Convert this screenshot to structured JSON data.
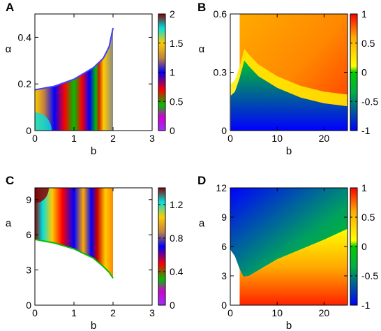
{
  "chart_data": [
    {
      "panel": "A",
      "type": "heatmap",
      "xlabel": "b",
      "ylabel": "α",
      "xlim": [
        0,
        3
      ],
      "ylim": [
        0,
        0.5
      ],
      "xticks": [
        "0",
        "1",
        "2",
        "3"
      ],
      "xtick_values": [
        0,
        1,
        2,
        3
      ],
      "yticks": [
        "0",
        "0.2",
        "0.4"
      ],
      "ytick_values": [
        0,
        0.2,
        0.4
      ],
      "colorbar": {
        "min": 0,
        "max": 2,
        "ticks": [
          "0",
          "0.5",
          "1",
          "1.5",
          "2"
        ],
        "tick_values": [
          0,
          0.5,
          1,
          1.5,
          2
        ],
        "palette": "cyclic-rainbow"
      },
      "region": {
        "b_max": 2.0,
        "upper_boundary": [
          [
            0,
            0.175
          ],
          [
            0.5,
            0.19
          ],
          [
            1.0,
            0.22
          ],
          [
            1.5,
            0.27
          ],
          [
            1.75,
            0.31
          ],
          [
            1.9,
            0.36
          ],
          [
            2.0,
            0.44
          ]
        ]
      }
    },
    {
      "panel": "B",
      "type": "heatmap",
      "xlabel": "b",
      "ylabel": "α",
      "xlim": [
        0,
        25
      ],
      "ylim": [
        0,
        0.6
      ],
      "xticks": [
        "0",
        "10",
        "20"
      ],
      "xtick_values": [
        0,
        10,
        20
      ],
      "yticks": [
        "0",
        "0.3",
        "0.6"
      ],
      "ytick_values": [
        0,
        0.3,
        0.6
      ],
      "colorbar": {
        "min": -1,
        "max": 1,
        "ticks": [
          "-1",
          "-0.5",
          "0",
          "0.5",
          "1"
        ],
        "tick_values": [
          -1,
          -0.5,
          0,
          0.5,
          1
        ],
        "palette": "blue-green-yellow-red"
      },
      "region": {
        "b_min": 2.0,
        "transition_curve": [
          [
            0.1,
            0.18
          ],
          [
            1,
            0.2
          ],
          [
            2,
            0.27
          ],
          [
            3,
            0.36
          ],
          [
            4,
            0.33
          ],
          [
            6,
            0.28
          ],
          [
            10,
            0.22
          ],
          [
            15,
            0.17
          ],
          [
            20,
            0.14
          ],
          [
            25,
            0.125
          ]
        ]
      }
    },
    {
      "panel": "C",
      "type": "heatmap",
      "xlabel": "b",
      "ylabel": "a",
      "xlim": [
        0,
        3
      ],
      "ylim": [
        0,
        10
      ],
      "xticks": [
        "0",
        "1",
        "2",
        "3"
      ],
      "xtick_values": [
        0,
        1,
        2,
        3
      ],
      "yticks": [
        "0",
        "3",
        "6",
        "9"
      ],
      "ytick_values": [
        0,
        3,
        6,
        9
      ],
      "colorbar": {
        "min": 0,
        "max": 1.4,
        "ticks": [
          "0",
          "0.4",
          "0.8",
          "1.2"
        ],
        "tick_values": [
          0,
          0.4,
          0.8,
          1.2
        ],
        "palette": "cyclic-rainbow"
      },
      "region": {
        "b_max": 2.0,
        "lower_boundary": [
          [
            0,
            5.6
          ],
          [
            0.5,
            5.3
          ],
          [
            1.0,
            4.8
          ],
          [
            1.5,
            4.0
          ],
          [
            1.75,
            3.3
          ],
          [
            1.9,
            2.8
          ],
          [
            2.0,
            2.3
          ]
        ]
      }
    },
    {
      "panel": "D",
      "type": "heatmap",
      "xlabel": "b",
      "ylabel": "a",
      "xlim": [
        0,
        25
      ],
      "ylim": [
        0,
        12
      ],
      "xticks": [
        "0",
        "10",
        "20"
      ],
      "xtick_values": [
        0,
        10,
        20
      ],
      "yticks": [
        "0",
        "3",
        "6",
        "9",
        "12"
      ],
      "ytick_values": [
        0,
        3,
        6,
        9,
        12
      ],
      "colorbar": {
        "min": -1,
        "max": 1,
        "ticks": [
          "-1",
          "-0.5",
          "0",
          "0.5",
          "1"
        ],
        "tick_values": [
          -1,
          -0.5,
          0,
          0.5,
          1
        ],
        "palette": "blue-green-yellow-red"
      },
      "region": {
        "b_min": 2.0,
        "transition_curve": [
          [
            0,
            5.7
          ],
          [
            1,
            5.0
          ],
          [
            2,
            3.7
          ],
          [
            2.8,
            2.9
          ],
          [
            4,
            3.0
          ],
          [
            10,
            4.7
          ],
          [
            15,
            5.7
          ],
          [
            20,
            6.7
          ],
          [
            25,
            7.8
          ]
        ]
      }
    }
  ]
}
